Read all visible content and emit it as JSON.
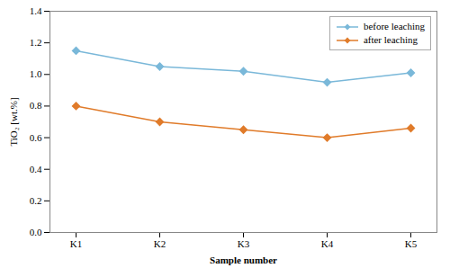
{
  "chart_data": {
    "type": "line",
    "categories": [
      "K1",
      "K2",
      "K3",
      "K4",
      "K5"
    ],
    "series": [
      {
        "name": "before leaching",
        "color": "#7ab8d9",
        "marker": "diamond",
        "values": [
          1.15,
          1.05,
          1.02,
          0.95,
          1.01
        ]
      },
      {
        "name": "after leaching",
        "color": "#e07b2a",
        "marker": "diamond",
        "values": [
          0.8,
          0.7,
          0.65,
          0.6,
          0.66
        ]
      }
    ],
    "xlabel": "Sample number",
    "ylabel": "TiO₂ [wt.%]",
    "ylim": [
      0.0,
      1.4
    ],
    "yticks": [
      {
        "value": 0.0,
        "label": "0.0"
      },
      0.2,
      0.4,
      0.6,
      0.8,
      {
        "value": 1.0,
        "label": "1.0"
      },
      1.2,
      1.4
    ],
    "grid": false,
    "legend": "upper right"
  }
}
